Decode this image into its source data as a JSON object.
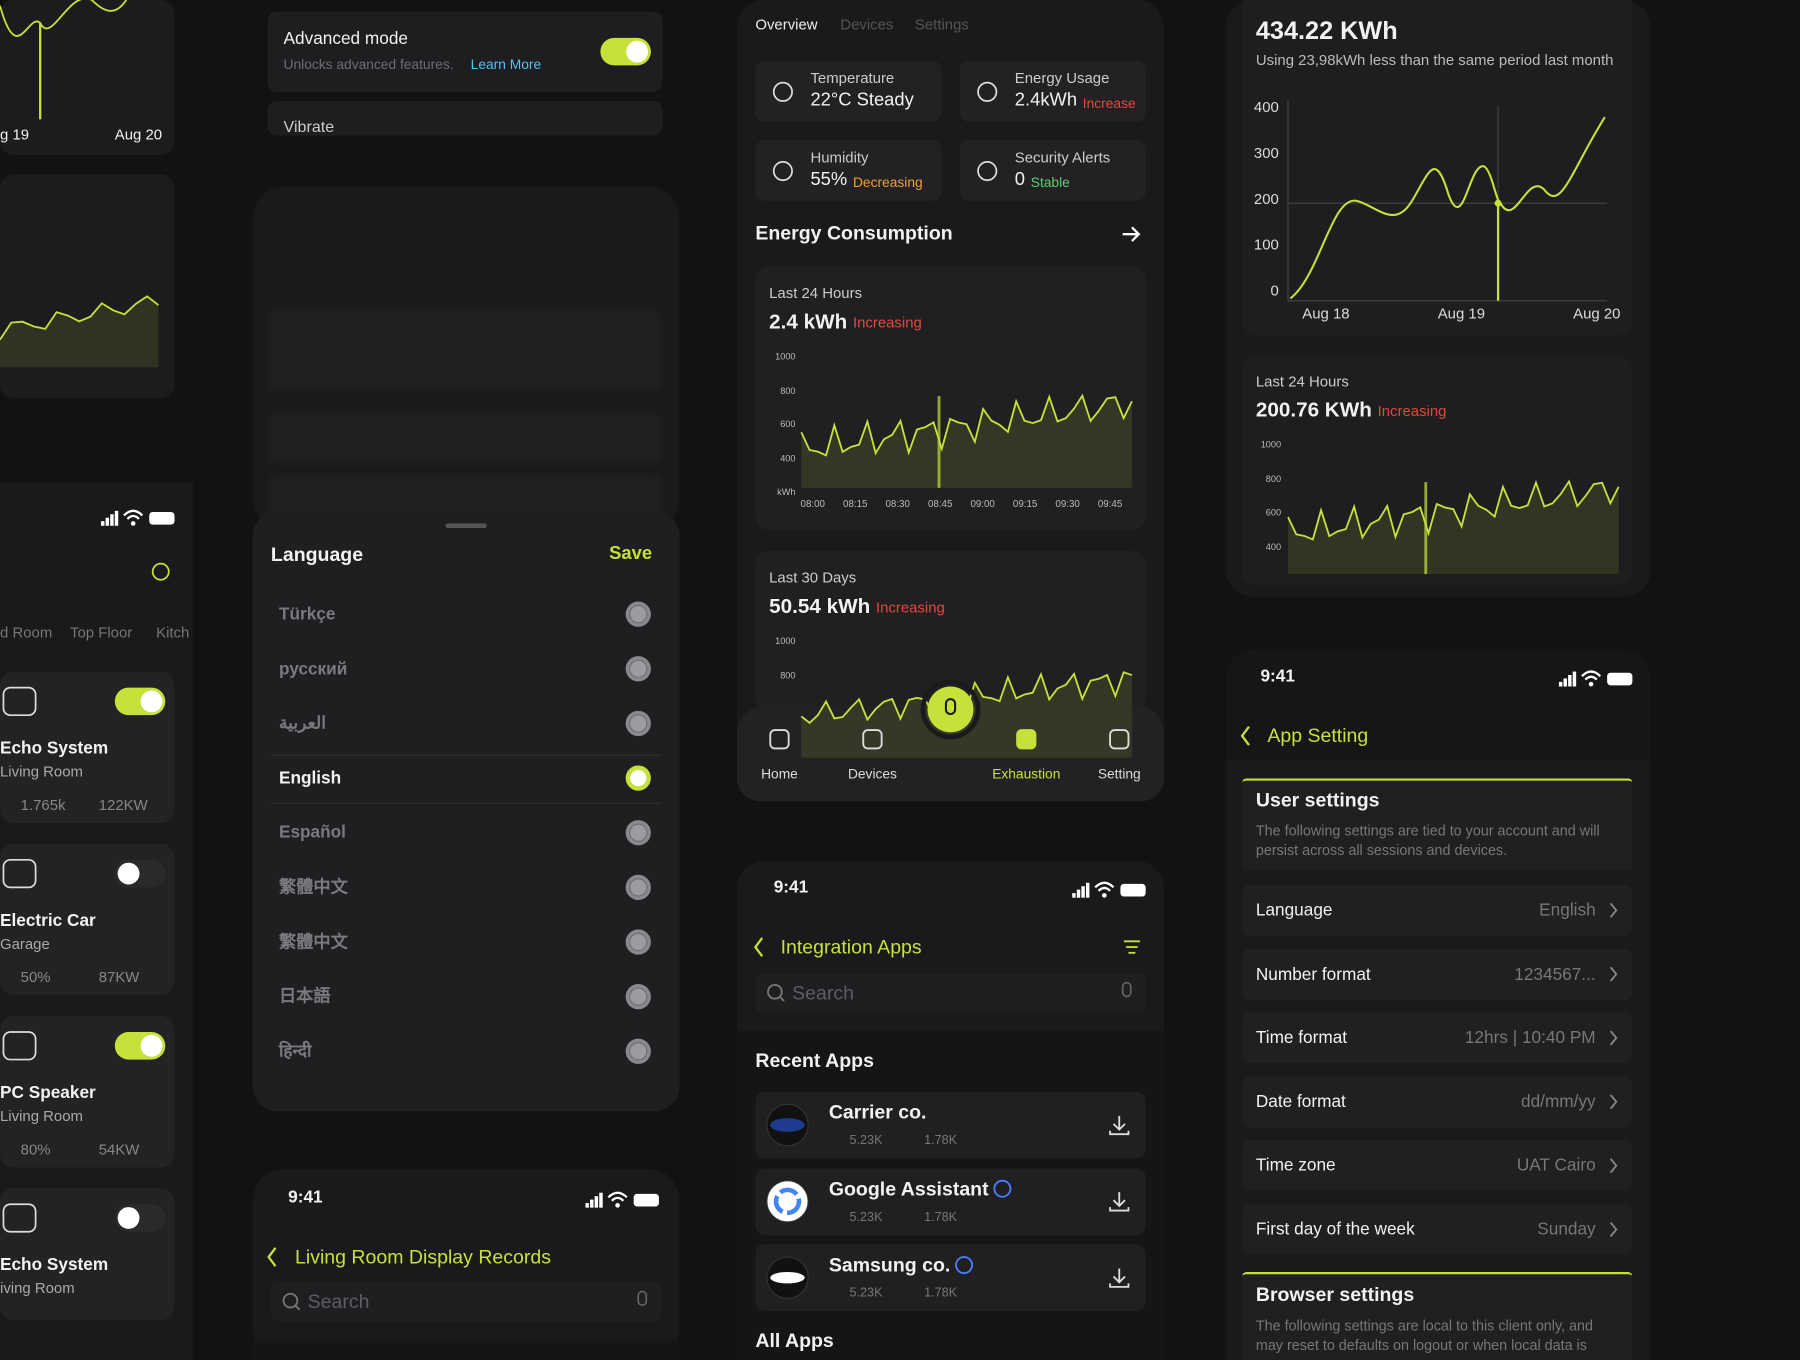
{
  "left_panel": {
    "chart_labels": [
      "g 19",
      "Aug 20"
    ],
    "tabs": [
      "d Room",
      "Top Floor",
      "Kitch"
    ],
    "devices": [
      {
        "name": "Echo System",
        "room": "Living Room",
        "stat1": "1.765k",
        "stat2": "122KW",
        "on": true
      },
      {
        "name": "Electric Car",
        "room": "Garage",
        "stat1": "50%",
        "stat2": "87KW",
        "on": false
      },
      {
        "name": "PC Speaker",
        "room": "Living Room",
        "stat1": "80%",
        "stat2": "54KW",
        "on": true
      },
      {
        "name": "Echo System",
        "room": "iving Room",
        "on": false
      }
    ]
  },
  "advanced": {
    "title": "Advanced mode",
    "desc": "Unlocks advanced features.",
    "link": "Learn More",
    "next": "Vibrate",
    "on": true
  },
  "language_sheet": {
    "title": "Language",
    "save": "Save",
    "selected": 3,
    "options": [
      "Türkçe",
      "русский",
      "العربية",
      "English",
      "Español",
      "繁體中文",
      "繁體中文",
      "日本語",
      "हिन्दी"
    ]
  },
  "records": {
    "time": "9:41",
    "title": "Living Room Display Records",
    "search": "Search"
  },
  "overview": {
    "tabs": [
      "Overview",
      "Devices",
      "Settings"
    ],
    "stats": [
      {
        "label": "Temperature",
        "value": "22°C Steady"
      },
      {
        "label": "Energy Usage",
        "value": "2.4kWh",
        "trend": "Increase",
        "color": "#e5483a"
      },
      {
        "label": "Humidity",
        "value": "55%",
        "trend": "Decreasing",
        "color": "#f0a030"
      },
      {
        "label": "Security Alerts",
        "value": "0",
        "trend": "Stable",
        "color": "#5bd06b"
      }
    ]
  },
  "energy": {
    "title": "Energy Consumption",
    "cards": [
      {
        "period": "Last 24 Hours",
        "value": "2.4 kWh",
        "trend": "Increasing",
        "yticks": [
          "1000",
          "800",
          "600",
          "400",
          "kWh"
        ],
        "xticks": [
          "08:00",
          "08:15",
          "08:30",
          "08:45",
          "09:00",
          "09:15",
          "09:30",
          "09:45"
        ]
      },
      {
        "period": "Last 30 Days",
        "value": "50.54 kWh",
        "trend": "Increasing",
        "yticks": [
          "1000",
          "800"
        ]
      }
    ]
  },
  "nav": {
    "items": [
      "Home",
      "Devices",
      "Exhaustion",
      "Setting"
    ],
    "active": 2
  },
  "integration": {
    "time": "9:41",
    "title": "Integration Apps",
    "search": "Search",
    "recent": "Recent Apps",
    "all": "All Apps",
    "apps": [
      {
        "name": "Carrier co.",
        "likes": "5.23K",
        "downloads": "1.78K",
        "verified": false
      },
      {
        "name": "Google Assistant",
        "likes": "5.23K",
        "downloads": "1.78K",
        "verified": true
      },
      {
        "name": "Samsung co.",
        "likes": "5.23K",
        "downloads": "1.78K",
        "verified": true
      }
    ]
  },
  "right_top": {
    "value": "434.22 KWh",
    "note": "Using 23,98kWh less than the same period last month",
    "yticks": [
      "400",
      "300",
      "200",
      "100",
      "0"
    ],
    "xticks": [
      "Aug 18",
      "Aug 19",
      "Aug 20"
    ]
  },
  "right_card2": {
    "period": "Last 24 Hours",
    "value": "200.76 KWh",
    "trend": "Increasing",
    "yticks": [
      "1000",
      "800",
      "600",
      "400"
    ]
  },
  "app_setting": {
    "time": "9:41",
    "title": "App Setting",
    "user_title": "User settings",
    "user_desc": "The following settings are tied to your account and will persist across all sessions and devices.",
    "rows": [
      {
        "label": "Language",
        "value": "English"
      },
      {
        "label": "Number format",
        "value": "1234567..."
      },
      {
        "label": "Time format",
        "value": "12hrs | 10:40 PM"
      },
      {
        "label": "Date format",
        "value": "dd/mm/yy"
      },
      {
        "label": "Time zone",
        "value": "UAT Cairo"
      },
      {
        "label": "First day of the week",
        "value": "Sunday"
      }
    ],
    "browser_title": "Browser settings",
    "browser_desc": "The following settings are local to this client only, and may reset to defaults on logout or when local data is"
  }
}
